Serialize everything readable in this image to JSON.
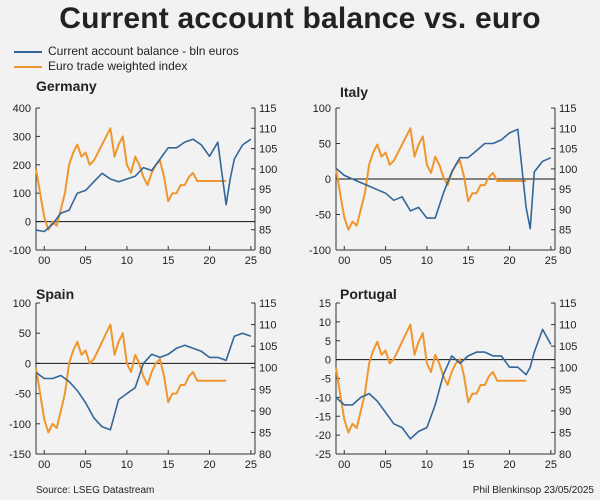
{
  "title": "Current account balance vs. euro",
  "legend": [
    {
      "label": "Current account balance - bln euros",
      "color": "#336699"
    },
    {
      "label": "Euro trade weighted index",
      "color": "#f0962e"
    }
  ],
  "footer": {
    "source": "Source: LSEG Datastream",
    "credit": "Phil Blenkinsop 23/05/2025"
  },
  "colors": {
    "ca": "#336699",
    "euro": "#f0962e"
  },
  "chart_data": [
    {
      "type": "line",
      "title": "Germany",
      "xlim": [
        1999,
        2025.5
      ],
      "xticks": [
        2000,
        2005,
        2010,
        2015,
        2020,
        2025
      ],
      "xtick_labels": [
        "00",
        "05",
        "10",
        "15",
        "20",
        "25"
      ],
      "ylim_left": [
        -100,
        400
      ],
      "yticks_left": [
        -100,
        0,
        100,
        200,
        300,
        400
      ],
      "ylim_right": [
        80,
        115
      ],
      "yticks_right": [
        80,
        85,
        90,
        95,
        100,
        105,
        110,
        115
      ],
      "series": [
        {
          "name": "Current account balance - bln euros",
          "axis": "left",
          "x": [
            1999,
            2000,
            2001,
            2002,
            2003,
            2004,
            2005,
            2006,
            2007,
            2008,
            2009,
            2010,
            2011,
            2012,
            2013,
            2014,
            2015,
            2016,
            2017,
            2018,
            2019,
            2020,
            2021,
            2022,
            2022.5,
            2023,
            2024,
            2025
          ],
          "y": [
            -30,
            -35,
            -10,
            30,
            40,
            100,
            110,
            140,
            170,
            150,
            140,
            150,
            160,
            190,
            180,
            220,
            260,
            260,
            280,
            290,
            270,
            230,
            280,
            60,
            150,
            220,
            270,
            290
          ]
        },
        {
          "name": "Euro trade weighted index",
          "axis": "right",
          "x": [
            1999,
            1999.5,
            2000,
            2000.5,
            2001,
            2001.5,
            2002,
            2002.5,
            2003,
            2003.5,
            2004,
            2004.5,
            2005,
            2005.5,
            2006,
            2006.5,
            2007,
            2007.5,
            2008,
            2008.5,
            2009,
            2009.5,
            2010,
            2010.5,
            2011,
            2011.5,
            2012,
            2012.5,
            2013,
            2013.5,
            2014,
            2014.5,
            2015,
            2015.5,
            2016,
            2016.5,
            2017,
            2017.5,
            2018,
            2018.5,
            2019,
            2019.5,
            2020,
            2020.5,
            2021,
            2021.5,
            2022
          ],
          "y": [
            100,
            94,
            88,
            85,
            87,
            86,
            90,
            94,
            101,
            104,
            106,
            103,
            104,
            101,
            102,
            104,
            106,
            108,
            110,
            103,
            106,
            108,
            101,
            99,
            103,
            101,
            98,
            96,
            99,
            101,
            102,
            98,
            92,
            94,
            94,
            96,
            96,
            98,
            99,
            97,
            97,
            97,
            97,
            97,
            97,
            97,
            97
          ]
        }
      ]
    },
    {
      "type": "line",
      "title": "Italy",
      "xlim": [
        1999,
        2025.5
      ],
      "xticks": [
        2000,
        2005,
        2010,
        2015,
        2020,
        2025
      ],
      "xtick_labels": [
        "00",
        "05",
        "10",
        "15",
        "20",
        "25"
      ],
      "ylim_left": [
        -100,
        100
      ],
      "yticks_left": [
        -100,
        -50,
        0,
        50,
        100
      ],
      "ylim_right": [
        80,
        115
      ],
      "yticks_right": [
        80,
        85,
        90,
        95,
        100,
        105,
        110,
        115
      ],
      "series": [
        {
          "name": "Current account balance - bln euros",
          "axis": "left",
          "x": [
            1999,
            2000,
            2001,
            2002,
            2003,
            2004,
            2005,
            2006,
            2007,
            2008,
            2009,
            2010,
            2011,
            2012,
            2013,
            2014,
            2015,
            2016,
            2017,
            2018,
            2019,
            2020,
            2021,
            2022,
            2022.5,
            2023,
            2024,
            2025
          ],
          "y": [
            15,
            5,
            0,
            -5,
            -10,
            -15,
            -20,
            -30,
            -25,
            -45,
            -40,
            -55,
            -55,
            -20,
            10,
            30,
            30,
            40,
            50,
            50,
            55,
            65,
            70,
            -40,
            -70,
            10,
            25,
            30
          ]
        },
        {
          "name": "Euro trade weighted index",
          "axis": "right",
          "x": [
            1999,
            1999.5,
            2000,
            2000.5,
            2001,
            2001.5,
            2002,
            2002.5,
            2003,
            2003.5,
            2004,
            2004.5,
            2005,
            2005.5,
            2006,
            2006.5,
            2007,
            2007.5,
            2008,
            2008.5,
            2009,
            2009.5,
            2010,
            2010.5,
            2011,
            2011.5,
            2012,
            2012.5,
            2013,
            2013.5,
            2014,
            2014.5,
            2015,
            2015.5,
            2016,
            2016.5,
            2017,
            2017.5,
            2018,
            2018.5,
            2019,
            2019.5,
            2020,
            2020.5,
            2021,
            2021.5,
            2022
          ],
          "y": [
            100,
            94,
            88,
            85,
            87,
            86,
            90,
            94,
            101,
            104,
            106,
            103,
            104,
            101,
            102,
            104,
            106,
            108,
            110,
            103,
            106,
            108,
            101,
            99,
            103,
            101,
            98,
            96,
            99,
            101,
            102,
            98,
            92,
            94,
            94,
            96,
            96,
            98,
            99,
            97,
            97,
            97,
            97,
            97,
            97,
            97,
            97
          ]
        }
      ]
    },
    {
      "type": "line",
      "title": "Spain",
      "xlim": [
        1999,
        2025.5
      ],
      "xticks": [
        2000,
        2005,
        2010,
        2015,
        2020,
        2025
      ],
      "xtick_labels": [
        "00",
        "05",
        "10",
        "15",
        "20",
        "25"
      ],
      "ylim_left": [
        -150,
        100
      ],
      "yticks_left": [
        -150,
        -100,
        -50,
        0,
        50,
        100
      ],
      "ylim_right": [
        80,
        115
      ],
      "yticks_right": [
        80,
        85,
        90,
        95,
        100,
        105,
        110,
        115
      ],
      "series": [
        {
          "name": "Current account balance - bln euros",
          "axis": "left",
          "x": [
            1999,
            2000,
            2001,
            2002,
            2003,
            2004,
            2005,
            2006,
            2007,
            2008,
            2009,
            2010,
            2011,
            2012,
            2013,
            2014,
            2015,
            2016,
            2017,
            2018,
            2019,
            2020,
            2021,
            2022,
            2023,
            2024,
            2025
          ],
          "y": [
            -15,
            -25,
            -25,
            -20,
            -30,
            -45,
            -65,
            -90,
            -105,
            -110,
            -60,
            -50,
            -40,
            0,
            15,
            10,
            15,
            25,
            30,
            25,
            20,
            10,
            10,
            5,
            45,
            50,
            45
          ]
        },
        {
          "name": "Euro trade weighted index",
          "axis": "right",
          "x": [
            1999,
            1999.5,
            2000,
            2000.5,
            2001,
            2001.5,
            2002,
            2002.5,
            2003,
            2003.5,
            2004,
            2004.5,
            2005,
            2005.5,
            2006,
            2006.5,
            2007,
            2007.5,
            2008,
            2008.5,
            2009,
            2009.5,
            2010,
            2010.5,
            2011,
            2011.5,
            2012,
            2012.5,
            2013,
            2013.5,
            2014,
            2014.5,
            2015,
            2015.5,
            2016,
            2016.5,
            2017,
            2017.5,
            2018,
            2018.5,
            2019,
            2019.5,
            2020,
            2020.5,
            2021,
            2021.5,
            2022
          ],
          "y": [
            100,
            94,
            88,
            85,
            87,
            86,
            90,
            94,
            101,
            104,
            106,
            103,
            104,
            101,
            102,
            104,
            106,
            108,
            110,
            103,
            106,
            108,
            101,
            99,
            103,
            101,
            98,
            96,
            99,
            101,
            102,
            98,
            92,
            94,
            94,
            96,
            96,
            98,
            99,
            97,
            97,
            97,
            97,
            97,
            97,
            97,
            97
          ]
        }
      ]
    },
    {
      "type": "line",
      "title": "Portugal",
      "xlim": [
        1999,
        2025.5
      ],
      "xticks": [
        2000,
        2005,
        2010,
        2015,
        2020,
        2025
      ],
      "xtick_labels": [
        "00",
        "05",
        "10",
        "15",
        "20",
        "25"
      ],
      "ylim_left": [
        -25,
        15
      ],
      "yticks_left": [
        -25,
        -20,
        -15,
        -10,
        -5,
        0,
        5,
        10,
        15
      ],
      "ylim_right": [
        80,
        115
      ],
      "yticks_right": [
        80,
        85,
        90,
        95,
        100,
        105,
        110,
        115
      ],
      "series": [
        {
          "name": "Current account balance - bln euros",
          "axis": "left",
          "x": [
            1999,
            2000,
            2001,
            2002,
            2003,
            2004,
            2005,
            2006,
            2007,
            2008,
            2009,
            2010,
            2011,
            2012,
            2013,
            2014,
            2015,
            2016,
            2017,
            2018,
            2019,
            2020,
            2021,
            2022,
            2022.5,
            2023,
            2024,
            2025
          ],
          "y": [
            -10,
            -12,
            -12,
            -10,
            -9,
            -11,
            -14,
            -17,
            -18,
            -21,
            -19,
            -18,
            -12,
            -4,
            1,
            -1,
            1,
            2,
            2,
            1,
            1,
            -2,
            -2,
            -4,
            -2,
            2,
            8,
            4
          ]
        },
        {
          "name": "Euro trade weighted index",
          "axis": "right",
          "x": [
            1999,
            1999.5,
            2000,
            2000.5,
            2001,
            2001.5,
            2002,
            2002.5,
            2003,
            2003.5,
            2004,
            2004.5,
            2005,
            2005.5,
            2006,
            2006.5,
            2007,
            2007.5,
            2008,
            2008.5,
            2009,
            2009.5,
            2010,
            2010.5,
            2011,
            2011.5,
            2012,
            2012.5,
            2013,
            2013.5,
            2014,
            2014.5,
            2015,
            2015.5,
            2016,
            2016.5,
            2017,
            2017.5,
            2018,
            2018.5,
            2019,
            2019.5,
            2020,
            2020.5,
            2021,
            2021.5,
            2022
          ],
          "y": [
            100,
            94,
            88,
            85,
            87,
            86,
            90,
            94,
            101,
            104,
            106,
            103,
            104,
            101,
            102,
            104,
            106,
            108,
            110,
            103,
            106,
            108,
            101,
            99,
            103,
            101,
            98,
            96,
            99,
            101,
            102,
            98,
            92,
            94,
            94,
            96,
            96,
            98,
            99,
            97,
            97,
            97,
            97,
            97,
            97,
            97,
            97
          ]
        }
      ]
    }
  ]
}
